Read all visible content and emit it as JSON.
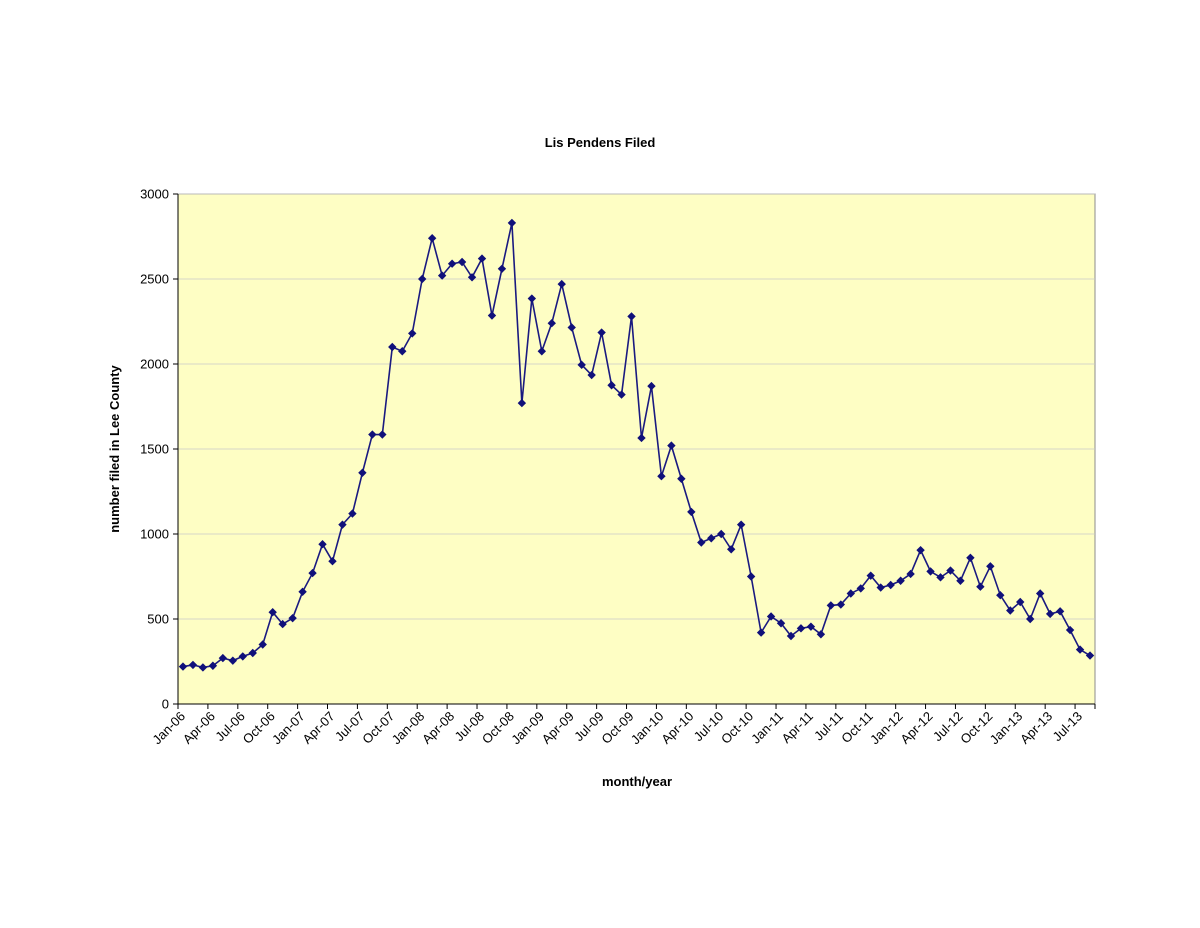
{
  "chart_data": {
    "type": "line",
    "title": "Lis Pendens Filed",
    "xlabel": "month/year",
    "ylabel": "number filed in Lee County",
    "ylim": [
      0,
      3000
    ],
    "y_ticks": [
      0,
      500,
      1000,
      1500,
      2000,
      2500,
      3000
    ],
    "grid": true,
    "legend": "none",
    "colors": {
      "plot_background": "#fefec4",
      "series": "#1a1a80"
    },
    "x_tick_labels": [
      "Jan-06",
      "Apr-06",
      "Jul-06",
      "Oct-06",
      "Jan-07",
      "Apr-07",
      "Jul-07",
      "Oct-07",
      "Jan-08",
      "Apr-08",
      "Jul-08",
      "Oct-08",
      "Jan-09",
      "Apr-09",
      "Jul-09",
      "Oct-09",
      "Jan-10",
      "Apr-10",
      "Jul-10",
      "Oct-10",
      "Jan-11",
      "Apr-11",
      "Jul-11",
      "Oct-11",
      "Jan-12",
      "Apr-12",
      "Jul-12",
      "Oct-12",
      "Jan-13",
      "Apr-13",
      "Jul-13"
    ],
    "x": [
      "Jan-06",
      "Feb-06",
      "Mar-06",
      "Apr-06",
      "May-06",
      "Jun-06",
      "Jul-06",
      "Aug-06",
      "Sep-06",
      "Oct-06",
      "Nov-06",
      "Dec-06",
      "Jan-07",
      "Feb-07",
      "Mar-07",
      "Apr-07",
      "May-07",
      "Jun-07",
      "Jul-07",
      "Aug-07",
      "Sep-07",
      "Oct-07",
      "Nov-07",
      "Dec-07",
      "Jan-08",
      "Feb-08",
      "Mar-08",
      "Apr-08",
      "May-08",
      "Jun-08",
      "Jul-08",
      "Aug-08",
      "Sep-08",
      "Oct-08",
      "Nov-08",
      "Dec-08",
      "Jan-09",
      "Feb-09",
      "Mar-09",
      "Apr-09",
      "May-09",
      "Jun-09",
      "Jul-09",
      "Aug-09",
      "Sep-09",
      "Oct-09",
      "Nov-09",
      "Dec-09",
      "Jan-10",
      "Feb-10",
      "Mar-10",
      "Apr-10",
      "May-10",
      "Jun-10",
      "Jul-10",
      "Aug-10",
      "Sep-10",
      "Oct-10",
      "Nov-10",
      "Dec-10",
      "Jan-11",
      "Feb-11",
      "Mar-11",
      "Apr-11",
      "May-11",
      "Jun-11",
      "Jul-11",
      "Aug-11",
      "Sep-11",
      "Oct-11",
      "Nov-11",
      "Dec-11",
      "Jan-12",
      "Feb-12",
      "Mar-12",
      "Apr-12",
      "May-12",
      "Jun-12",
      "Jul-12",
      "Aug-12",
      "Sep-12",
      "Oct-12",
      "Nov-12",
      "Dec-12",
      "Jan-13",
      "Feb-13",
      "Mar-13",
      "Apr-13",
      "May-13",
      "Jun-13",
      "Jul-13",
      "Aug-13"
    ],
    "series": [
      {
        "values": [
          220,
          230,
          215,
          225,
          270,
          255,
          280,
          300,
          350,
          540,
          470,
          505,
          660,
          770,
          940,
          840,
          1055,
          1120,
          1360,
          1585,
          1585,
          2100,
          2075,
          2180,
          2500,
          2740,
          2520,
          2590,
          2600,
          2510,
          2620,
          2285,
          2560,
          2830,
          1770,
          2385,
          2075,
          2240,
          2470,
          2215,
          1995,
          1935,
          2185,
          1875,
          1820,
          2280,
          1565,
          1870,
          1340,
          1520,
          1325,
          1130,
          950,
          975,
          1000,
          910,
          1055,
          750,
          420,
          515,
          475,
          400,
          445,
          455,
          410,
          580,
          585,
          650,
          680,
          755,
          685,
          700,
          725,
          765,
          905,
          780,
          745,
          785,
          725,
          860,
          690,
          810,
          640,
          550,
          600,
          500,
          650,
          530,
          545,
          435,
          320,
          285
        ]
      }
    ]
  }
}
